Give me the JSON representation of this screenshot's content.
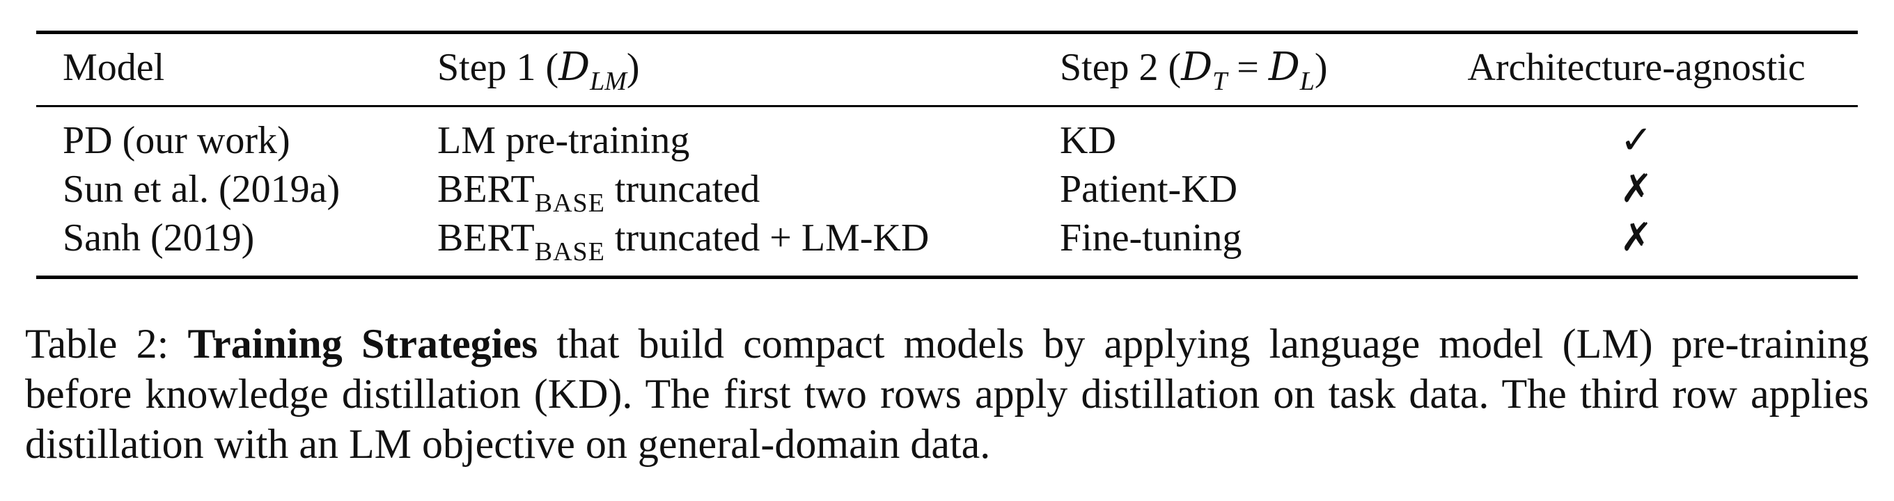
{
  "table": {
    "headers": {
      "model": "Model",
      "step1_text": "Step 1 (",
      "step1_math_main": "D",
      "step1_math_sub": "LM",
      "step1_close": ")",
      "step2_text": "Step 2 (",
      "step2_math_main1": "D",
      "step2_math_sub1": "T",
      "step2_eq": " = ",
      "step2_math_main2": "D",
      "step2_math_sub2": "L",
      "step2_close": ")",
      "agnostic": "Architecture-agnostic"
    },
    "rows": [
      {
        "model": "PD (our work)",
        "step1_prefix": "LM pre-training",
        "step1_sub": "",
        "step1_suffix": "",
        "step2": "KD",
        "agnostic": "✓"
      },
      {
        "model": "Sun et al. (2019a)",
        "step1_prefix": "BERT",
        "step1_sub": "BASE",
        "step1_suffix": " truncated",
        "step2": "Patient-KD",
        "agnostic": "✗"
      },
      {
        "model": "Sanh (2019)",
        "step1_prefix": "BERT",
        "step1_sub": "BASE",
        "step1_suffix": " truncated + LM-KD",
        "step2": "Fine-tuning",
        "agnostic": "✗"
      }
    ]
  },
  "caption": {
    "label": "Table 2: ",
    "bold": "Training Strategies",
    "text": " that build compact models by applying language model (LM) pre-training before knowledge distillation (KD). The first two rows apply distillation on task data. The third row applies distillation with an LM objective on general-domain data."
  }
}
